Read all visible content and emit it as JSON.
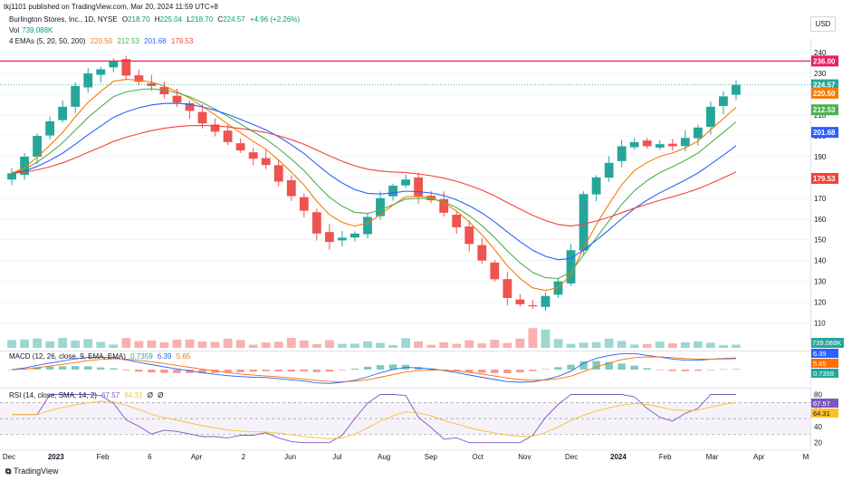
{
  "header": {
    "publisher": "tkj1101 published on TradingView.com, Mar 20, 2024 11:59 UTC+8"
  },
  "legend": {
    "symbol": "Burlington Stores, Inc., 1D, NYSE",
    "ohlc": {
      "o_label": "O",
      "o": "218.70",
      "h_label": "H",
      "h": "225.04",
      "l_label": "L",
      "l": "218.70",
      "c_label": "C",
      "c": "224.57",
      "change": "+4.96 (+2.26%)"
    },
    "vol_label": "Vol",
    "vol": "739.088K",
    "ema_label": "4 EMAs (5, 20, 50, 200)",
    "ema_values": [
      "220.50",
      "212.53",
      "201.68",
      "179.53"
    ]
  },
  "currency": "USD",
  "colors": {
    "up": "#26a69a",
    "down": "#ef5350",
    "ema5": "#f57c00",
    "ema20": "#4caf50",
    "ema50": "#2962ff",
    "ema200": "#f44336",
    "line236": "#e91e63",
    "macd": "#2962ff",
    "signal": "#ff6d00",
    "rsi": "#7e57c2",
    "rsi_ma": "#fbc02d"
  },
  "chart_data": {
    "type": "candlestick",
    "x_labels": [
      "Dec",
      "2023",
      "Feb",
      "6",
      "Apr",
      "2",
      "Jun",
      "Jul",
      "Aug",
      "Sep",
      "Oct",
      "Nov",
      "Dec",
      "2024",
      "Feb",
      "Mar",
      "Apr",
      "M"
    ],
    "y_ticks": [
      240,
      230,
      220,
      210,
      200,
      190,
      180,
      170,
      160,
      150,
      140,
      130,
      120,
      110
    ],
    "ylim": [
      105,
      244
    ],
    "closes": [
      182,
      190,
      200,
      207,
      214,
      224,
      230,
      232,
      236,
      229,
      226,
      224,
      220,
      216,
      212,
      206,
      202,
      197,
      193,
      189,
      186,
      178,
      171,
      164,
      153,
      149,
      151,
      153,
      161,
      170,
      176,
      179,
      171,
      169,
      163,
      156,
      148,
      140,
      131,
      122,
      119,
      118,
      123,
      130,
      145,
      172,
      180,
      187,
      195,
      197,
      195,
      196,
      195,
      199,
      204,
      214,
      219,
      224.57
    ],
    "horizontal_line": 236,
    "price_tags": [
      {
        "label": "236.00",
        "value": 236,
        "color": "#e91e63"
      },
      {
        "label": "224.57",
        "value": 224.57,
        "color": "#26a69a"
      },
      {
        "label": "220.50",
        "value": 220.5,
        "color": "#f57c00"
      },
      {
        "label": "212.53",
        "value": 212.53,
        "color": "#4caf50"
      },
      {
        "label": "201.68",
        "value": 201.68,
        "color": "#2962ff"
      },
      {
        "label": "179.53",
        "value": 179.53,
        "color": "#f44336"
      }
    ],
    "volume_tag": "739.088K",
    "macd": {
      "label": "MACD (12, 26, close, 9, EMA, EMA)",
      "values": [
        "0.7359",
        "6.39",
        "5.65"
      ],
      "tags": [
        {
          "label": "6.39",
          "color": "#2962ff"
        },
        {
          "label": "5.65",
          "color": "#ff6d00"
        },
        {
          "label": "0.7359",
          "color": "#26a69a"
        }
      ]
    },
    "rsi": {
      "label": "RSI (14, close, SMA, 14, 2)",
      "values": [
        "67.57",
        "64.31",
        "Ø",
        "Ø"
      ],
      "y_ticks": [
        80,
        60,
        40,
        20
      ],
      "ylim": [
        14,
        84
      ],
      "tags": [
        {
          "label": "67.57",
          "color": "#7e57c2"
        },
        {
          "label": "64.31",
          "color": "#fbc02d"
        }
      ]
    }
  },
  "footer": {
    "brand": "TradingView"
  }
}
